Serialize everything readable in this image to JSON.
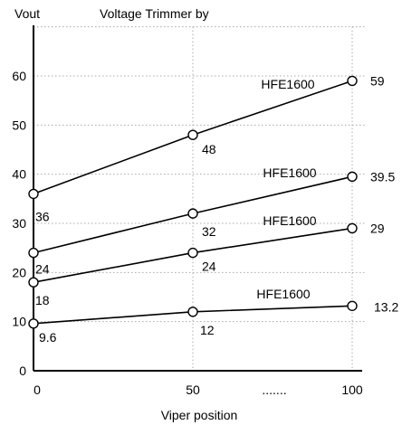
{
  "chart_data": {
    "type": "line",
    "title": "Voltage Trimmer by",
    "ylabel": "Vout",
    "xlabel": "Viper position",
    "x": [
      0,
      50,
      100
    ],
    "x_tick_labels": [
      "0",
      "50",
      "100"
    ],
    "x_ellipsis_label": ".......",
    "ylim": [
      0,
      70
    ],
    "y_ticks": [
      0,
      10,
      20,
      30,
      40,
      50,
      60
    ],
    "grid": true,
    "series": [
      {
        "name": "HFE1600",
        "values": [
          36,
          48,
          59
        ],
        "point_labels": [
          "36",
          "48",
          "59"
        ]
      },
      {
        "name": "HFE1600",
        "values": [
          24,
          32,
          39.5
        ],
        "point_labels": [
          "24",
          "32",
          "39.5"
        ]
      },
      {
        "name": "HFE1600",
        "values": [
          18,
          24,
          29
        ],
        "point_labels": [
          "18",
          "24",
          "29"
        ]
      },
      {
        "name": "HFE1600",
        "values": [
          9.6,
          12,
          13.2
        ],
        "point_labels": [
          "9.6",
          "12",
          "13.2"
        ]
      }
    ]
  }
}
